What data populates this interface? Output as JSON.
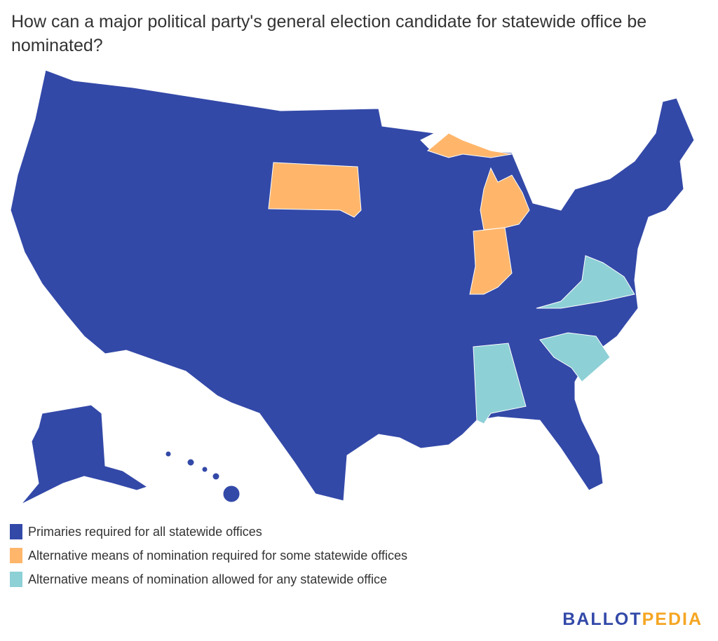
{
  "title": "How can a major political party's general election candidate for statewide office be nominated?",
  "colors": {
    "primaries_all": "#3349a8",
    "alt_required_some": "#ffb66b",
    "alt_allowed_any": "#8dd0d6",
    "border": "#ffffff"
  },
  "legend": [
    {
      "label": "Primaries required for all statewide offices",
      "color": "#3349a8"
    },
    {
      "label": "Alternative means of nomination required for some statewide offices",
      "color": "#ffb66b"
    },
    {
      "label": "Alternative means of nomination allowed for any statewide office",
      "color": "#8dd0d6"
    }
  ],
  "states": {
    "alt_required_some": [
      "South Dakota",
      "Michigan",
      "Indiana"
    ],
    "alt_allowed_any": [
      "Virginia",
      "South Carolina",
      "Alabama"
    ],
    "primaries_all": "all other states"
  },
  "logo": {
    "part1": "BALLOT",
    "part2": "PEDIA",
    "color1": "#3349a8",
    "color2": "#f5a623"
  }
}
